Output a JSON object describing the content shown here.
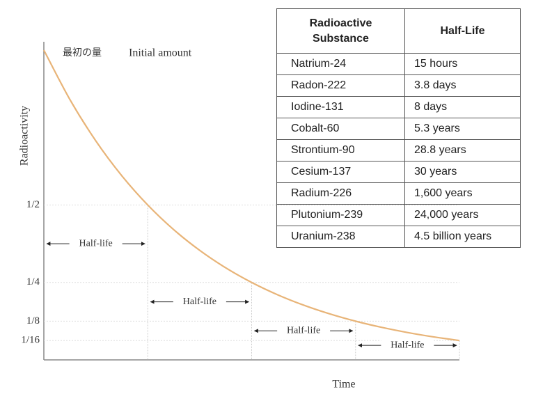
{
  "chart_data": {
    "type": "line",
    "annotations": {
      "initial_ja": "最初の量",
      "initial_en": "Initial amount"
    },
    "ylabel": "Radioactivity",
    "xlabel": "Time",
    "xlim": [
      0,
      4
    ],
    "ylim": [
      0,
      1
    ],
    "yticks": [
      {
        "value": 0.5,
        "label": "1/2"
      },
      {
        "value": 0.25,
        "label": "1/4"
      },
      {
        "value": 0.125,
        "label": "1/8"
      },
      {
        "value": 0.0625,
        "label": "1/16"
      }
    ],
    "grid": true,
    "x": [
      0,
      0.25,
      0.5,
      0.75,
      1,
      1.25,
      1.5,
      1.75,
      2,
      2.25,
      2.5,
      2.75,
      3,
      3.25,
      3.5,
      3.75,
      4
    ],
    "series": [
      {
        "color": "#e8b478",
        "values": [
          1,
          0.8409,
          0.7071,
          0.5946,
          0.5,
          0.4204,
          0.3536,
          0.2973,
          0.25,
          0.2102,
          0.1768,
          0.1487,
          0.125,
          0.1051,
          0.0884,
          0.0743,
          0.0625
        ]
      }
    ],
    "half_life_markers": [
      {
        "label": "Half-life",
        "from": 0,
        "to": 1
      },
      {
        "label": "Half-life",
        "from": 1,
        "to": 2
      },
      {
        "label": "Half-life",
        "from": 2,
        "to": 3
      },
      {
        "label": "Half-life",
        "from": 3,
        "to": 4
      }
    ]
  },
  "table": {
    "header": [
      "Radioactive Substance",
      "Half-Life"
    ],
    "rows": [
      [
        "Natrium-24",
        "15 hours"
      ],
      [
        "Radon-222",
        "3.8 days"
      ],
      [
        "Iodine-131",
        "8 days"
      ],
      [
        "Cobalt-60",
        "5.3 years"
      ],
      [
        "Strontium-90",
        "28.8 years"
      ],
      [
        "Cesium-137",
        "30 years"
      ],
      [
        "Radium-226",
        "1,600 years"
      ],
      [
        "Plutonium-239",
        "24,000 years"
      ],
      [
        "Uranium-238",
        "4.5 billion years"
      ]
    ]
  }
}
